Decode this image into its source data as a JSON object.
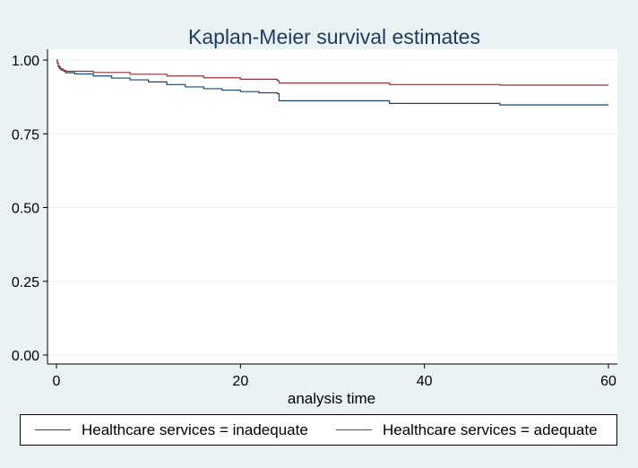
{
  "chart_data": {
    "type": "line",
    "subtype": "step",
    "title": "Kaplan-Meier survival estimates",
    "xlabel": "analysis time",
    "ylabel": "",
    "xlim": [
      0,
      60
    ],
    "ylim": [
      0,
      1
    ],
    "x_ticks": [
      0,
      20,
      40,
      60
    ],
    "x_tick_labels": [
      "0",
      "20",
      "40",
      "60"
    ],
    "y_ticks": [
      0,
      0.25,
      0.5,
      0.75,
      1.0
    ],
    "y_tick_labels": [
      "0.00",
      "0.25",
      "0.50",
      "0.75",
      "1.00"
    ],
    "grid": true,
    "legend_position": "bottom",
    "series": [
      {
        "name": "Healthcare services = inadequate",
        "color": "#1a476f",
        "x": [
          0,
          0.1,
          0.2,
          0.3,
          0.5,
          0.8,
          1,
          2,
          4,
          6,
          8,
          10,
          12,
          14,
          16,
          18,
          20,
          22,
          24,
          24.2,
          36,
          36.2,
          48,
          48.2,
          60
        ],
        "y": [
          1.0,
          0.99,
          0.98,
          0.972,
          0.966,
          0.962,
          0.957,
          0.953,
          0.946,
          0.939,
          0.933,
          0.926,
          0.917,
          0.909,
          0.903,
          0.898,
          0.893,
          0.889,
          0.886,
          0.862,
          0.862,
          0.853,
          0.853,
          0.848,
          0.848
        ]
      },
      {
        "name": "Healthcare services = adequate",
        "color": "#90353b",
        "x": [
          0,
          0.1,
          0.2,
          0.4,
          0.7,
          1,
          4,
          8,
          12,
          16,
          20,
          24,
          24.2,
          36,
          36.2,
          48,
          48.2,
          60
        ],
        "y": [
          1.0,
          0.99,
          0.978,
          0.97,
          0.965,
          0.962,
          0.958,
          0.952,
          0.946,
          0.94,
          0.935,
          0.93,
          0.922,
          0.922,
          0.917,
          0.917,
          0.915,
          0.915
        ]
      }
    ]
  }
}
